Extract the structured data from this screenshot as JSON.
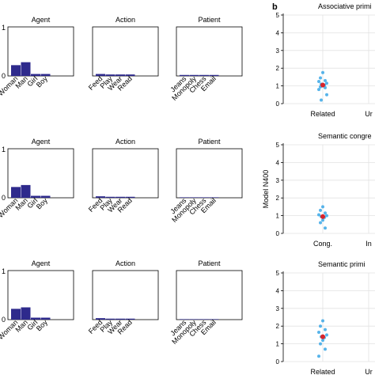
{
  "panel_b_label": "b",
  "colors": {
    "bar": "#2e2a8c",
    "dot": "#3aa7e6",
    "mean": "#d8232a",
    "grid": "#e2e2e2",
    "axis": "#000000"
  },
  "chart_data": [
    {
      "id": "r1-agent",
      "type": "bar",
      "title": "Agent",
      "categories": [
        "Woman",
        "Man",
        "Girl",
        "Boy"
      ],
      "values": [
        0.22,
        0.28,
        0.04,
        0.04
      ],
      "ylim": [
        0,
        1
      ],
      "yticks": [
        "1",
        "0"
      ]
    },
    {
      "id": "r1-action",
      "type": "bar",
      "title": "Action",
      "categories": [
        "Feed",
        "Play",
        "Wear",
        "Read"
      ],
      "values": [
        0.04,
        0.03,
        0.03,
        0.03
      ],
      "ylim": [
        0,
        1
      ]
    },
    {
      "id": "r1-patient",
      "type": "bar",
      "title": "Patient",
      "categories": [
        "Jeans",
        "Monopoly",
        "Chess",
        "Email"
      ],
      "values": [
        0.02,
        0.02,
        0.02,
        0.02
      ],
      "ylim": [
        0,
        1
      ]
    },
    {
      "id": "r2-agent",
      "type": "bar",
      "title": "Agent",
      "categories": [
        "Woman",
        "Man",
        "Girl",
        "Boy"
      ],
      "values": [
        0.22,
        0.26,
        0.04,
        0.04
      ],
      "ylim": [
        0,
        1
      ],
      "yticks": [
        "1",
        "0"
      ]
    },
    {
      "id": "r2-action",
      "type": "bar",
      "title": "Action",
      "categories": [
        "Feed",
        "Play",
        "Wear",
        "Read"
      ],
      "values": [
        0.03,
        0.02,
        0.02,
        0.02
      ],
      "ylim": [
        0,
        1
      ]
    },
    {
      "id": "r2-patient",
      "type": "bar",
      "title": "Patient",
      "categories": [
        "Jeans",
        "Monopoly",
        "Chess",
        "Email"
      ],
      "values": [
        0.01,
        0.01,
        0.01,
        0.01
      ],
      "ylim": [
        0,
        1
      ]
    },
    {
      "id": "r3-agent",
      "type": "bar",
      "title": "Agent",
      "categories": [
        "Woman",
        "Man",
        "Girl",
        "Boy"
      ],
      "values": [
        0.22,
        0.25,
        0.04,
        0.04
      ],
      "ylim": [
        0,
        1
      ],
      "yticks": [
        "1",
        "0"
      ]
    },
    {
      "id": "r3-action",
      "type": "bar",
      "title": "Action",
      "categories": [
        "Feed",
        "Play",
        "Wear",
        "Read"
      ],
      "values": [
        0.03,
        0.02,
        0.02,
        0.02
      ],
      "ylim": [
        0,
        1
      ]
    },
    {
      "id": "r3-patient",
      "type": "bar",
      "title": "Patient",
      "categories": [
        "Jeans",
        "Monopoly",
        "Chess",
        "Email"
      ],
      "values": [
        0.01,
        0.01,
        0.01,
        0.01
      ],
      "ylim": [
        0,
        1
      ]
    },
    {
      "id": "b1",
      "type": "scatter",
      "title": "Associative primi",
      "categories": [
        "Related",
        "Ur"
      ],
      "ylim": [
        0,
        5
      ],
      "yticks": [
        "0",
        "1",
        "2",
        "3",
        "4",
        "5"
      ],
      "points": [
        1.75,
        1.45,
        1.3,
        1.25,
        1.15,
        1.1,
        1.05,
        1.0,
        0.95,
        0.9,
        0.8,
        0.5,
        0.2
      ],
      "mean": 1.05
    },
    {
      "id": "b2",
      "type": "scatter",
      "title": "Semantic congre",
      "ylabel": "Model N400",
      "categories": [
        "Cong.",
        "In"
      ],
      "ylim": [
        0,
        5
      ],
      "yticks": [
        "0",
        "1",
        "2",
        "3",
        "4",
        "5"
      ],
      "points": [
        1.5,
        1.3,
        1.15,
        1.05,
        1.0,
        0.95,
        0.9,
        0.75,
        0.6,
        0.3
      ],
      "mean": 0.95
    },
    {
      "id": "b3",
      "type": "scatter",
      "title": "Semantic primi",
      "categories": [
        "Related",
        "Ur"
      ],
      "ylim": [
        0,
        5
      ],
      "yticks": [
        "0",
        "1",
        "2",
        "3",
        "4",
        "5"
      ],
      "points": [
        2.3,
        2.0,
        1.8,
        1.65,
        1.5,
        1.4,
        1.35,
        1.2,
        1.0,
        0.7,
        0.3
      ],
      "mean": 1.4
    }
  ]
}
